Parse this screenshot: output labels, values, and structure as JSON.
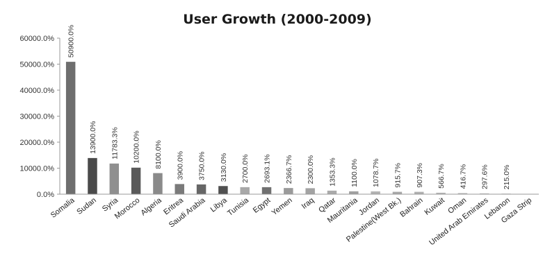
{
  "chart_data": {
    "type": "bar",
    "title": "User Growth (2000-2009)",
    "xlabel": "",
    "ylabel": "",
    "ylim": [
      0,
      60000
    ],
    "yticks": [
      "0.0%",
      "10000.0%",
      "20000.0%",
      "30000.0%",
      "40000.0%",
      "50000.0%",
      "60000.0%"
    ],
    "grid": false,
    "categories": [
      "Somalia",
      "Sudan",
      "Syria",
      "Morocco",
      "Algeria",
      "Eritrea",
      "Saudi Arabia",
      "Libya",
      "Tunisia",
      "Egypt",
      "Yemen",
      "Iraq",
      "Qatar",
      "Mauritania",
      "Jordan",
      "Palestine(West Bk.)",
      "Bahrain",
      "Kuwait",
      "Oman",
      "United Arab Emirates",
      "Lebanon",
      "Gaza Strip"
    ],
    "values": [
      50900.0,
      13900.0,
      11783.3,
      10200.0,
      8100.0,
      3900.0,
      3750.0,
      3130.0,
      2700.0,
      2693.1,
      2366.7,
      2300.0,
      1353.3,
      1100.0,
      1078.7,
      915.7,
      907.3,
      566.7,
      416.7,
      297.6,
      215.0,
      null
    ],
    "data_labels": [
      "50900.0%",
      "13900.0%",
      "11783.3%",
      "10200.0%",
      "8100.0%",
      "3900.0%",
      "3750.0%",
      "3130.0%",
      "2700.0%",
      "2693.1%",
      "2366.7%",
      "2300.0%",
      "1353.3%",
      "1100.0%",
      "1078.7%",
      "915.7%",
      "907.3%",
      "566.7%",
      "416.7%",
      "297.6%",
      "215.0%",
      ""
    ],
    "colors": [
      "#6e6e6e",
      "#4a4a4a",
      "#8f8f8f",
      "#5a5a5a",
      "#8a8a8a",
      "#7a7a7a",
      "#666666",
      "#505050",
      "#a8a8a8",
      "#707070",
      "#9a9a9a",
      "#a3a3a3",
      "#aaaaaa",
      "#a0a0a0",
      "#b3b3b3",
      "#a8a8a8",
      "#b0b0b0",
      "#b5b5b5",
      "#b8b8b8",
      "#bbbbbb",
      "#c0c0c0",
      "#c4c4c4"
    ]
  }
}
